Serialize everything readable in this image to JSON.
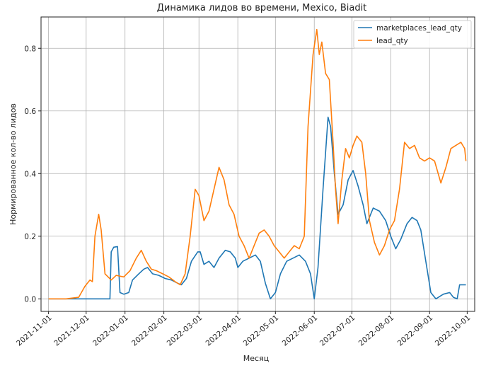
{
  "chart_data": {
    "type": "line",
    "title": "Динамика лидов во времени, Mexico, Biadit",
    "xlabel": "Месяц",
    "ylabel": "Нормированное кол-во лидов",
    "x_ticks": [
      "2021-11-01",
      "2021-12-01",
      "2022-01-01",
      "2022-02-01",
      "2022-03-01",
      "2022-04-01",
      "2022-05-01",
      "2022-06-01",
      "2022-07-01",
      "2022-08-01",
      "2022-09-01",
      "2022-10-01"
    ],
    "y_ticks": [
      "0.0",
      "0.2",
      "0.4",
      "0.6",
      "0.8"
    ],
    "xlim": [
      "2021-10-26",
      "2022-10-07"
    ],
    "ylim": [
      -0.04,
      0.9
    ],
    "grid": true,
    "legend_position": "top-right",
    "series": [
      {
        "name": "marketplaces_lead_qty",
        "color": "#1f77b4",
        "points": [
          [
            "2021-11-01",
            0.0
          ],
          [
            "2021-12-10",
            0.0
          ],
          [
            "2021-12-20",
            0.0
          ],
          [
            "2021-12-21",
            0.15
          ],
          [
            "2021-12-23",
            0.165
          ],
          [
            "2021-12-26",
            0.167
          ],
          [
            "2021-12-28",
            0.02
          ],
          [
            "2021-12-31",
            0.015
          ],
          [
            "2022-01-04",
            0.02
          ],
          [
            "2022-01-07",
            0.06
          ],
          [
            "2022-01-12",
            0.08
          ],
          [
            "2022-01-16",
            0.095
          ],
          [
            "2022-01-19",
            0.1
          ],
          [
            "2022-01-23",
            0.08
          ],
          [
            "2022-01-28",
            0.075
          ],
          [
            "2022-02-02",
            0.065
          ],
          [
            "2022-02-07",
            0.06
          ],
          [
            "2022-02-12",
            0.05
          ],
          [
            "2022-02-15",
            0.045
          ],
          [
            "2022-02-19",
            0.065
          ],
          [
            "2022-02-23",
            0.12
          ],
          [
            "2022-02-28",
            0.15
          ],
          [
            "2022-03-02",
            0.15
          ],
          [
            "2022-03-05",
            0.11
          ],
          [
            "2022-03-09",
            0.12
          ],
          [
            "2022-03-13",
            0.1
          ],
          [
            "2022-03-17",
            0.13
          ],
          [
            "2022-03-22",
            0.155
          ],
          [
            "2022-03-26",
            0.15
          ],
          [
            "2022-03-30",
            0.13
          ],
          [
            "2022-04-01",
            0.1
          ],
          [
            "2022-04-05",
            0.12
          ],
          [
            "2022-04-10",
            0.13
          ],
          [
            "2022-04-15",
            0.14
          ],
          [
            "2022-04-19",
            0.12
          ],
          [
            "2022-04-23",
            0.05
          ],
          [
            "2022-04-27",
            0.0
          ],
          [
            "2022-05-01",
            0.02
          ],
          [
            "2022-05-05",
            0.08
          ],
          [
            "2022-05-10",
            0.12
          ],
          [
            "2022-05-15",
            0.13
          ],
          [
            "2022-05-20",
            0.14
          ],
          [
            "2022-05-25",
            0.12
          ],
          [
            "2022-05-29",
            0.08
          ],
          [
            "2022-06-01",
            0.0
          ],
          [
            "2022-06-04",
            0.1
          ],
          [
            "2022-06-08",
            0.35
          ],
          [
            "2022-06-12",
            0.58
          ],
          [
            "2022-06-14",
            0.55
          ],
          [
            "2022-06-17",
            0.4
          ],
          [
            "2022-06-20",
            0.27
          ],
          [
            "2022-06-24",
            0.3
          ],
          [
            "2022-06-28",
            0.38
          ],
          [
            "2022-07-02",
            0.41
          ],
          [
            "2022-07-06",
            0.36
          ],
          [
            "2022-07-10",
            0.3
          ],
          [
            "2022-07-13",
            0.24
          ],
          [
            "2022-07-18",
            0.29
          ],
          [
            "2022-07-23",
            0.28
          ],
          [
            "2022-07-28",
            0.25
          ],
          [
            "2022-08-01",
            0.2
          ],
          [
            "2022-08-05",
            0.16
          ],
          [
            "2022-08-09",
            0.19
          ],
          [
            "2022-08-14",
            0.24
          ],
          [
            "2022-08-18",
            0.26
          ],
          [
            "2022-08-22",
            0.25
          ],
          [
            "2022-08-25",
            0.22
          ],
          [
            "2022-08-29",
            0.12
          ],
          [
            "2022-09-02",
            0.02
          ],
          [
            "2022-09-06",
            0.0
          ],
          [
            "2022-09-12",
            0.015
          ],
          [
            "2022-09-17",
            0.02
          ],
          [
            "2022-09-20",
            0.005
          ],
          [
            "2022-09-23",
            0.0
          ],
          [
            "2022-09-25",
            0.045
          ],
          [
            "2022-09-30",
            0.045
          ]
        ]
      },
      {
        "name": "lead_qty",
        "color": "#ff7f0e",
        "points": [
          [
            "2021-11-01",
            0.0
          ],
          [
            "2021-11-15",
            0.0
          ],
          [
            "2021-11-25",
            0.005
          ],
          [
            "2021-11-30",
            0.04
          ],
          [
            "2021-12-04",
            0.06
          ],
          [
            "2021-12-06",
            0.055
          ],
          [
            "2021-12-08",
            0.2
          ],
          [
            "2021-12-11",
            0.27
          ],
          [
            "2021-12-13",
            0.22
          ],
          [
            "2021-12-16",
            0.08
          ],
          [
            "2021-12-21",
            0.06
          ],
          [
            "2021-12-25",
            0.075
          ],
          [
            "2021-12-31",
            0.07
          ],
          [
            "2022-01-05",
            0.09
          ],
          [
            "2022-01-10",
            0.13
          ],
          [
            "2022-01-14",
            0.155
          ],
          [
            "2022-01-18",
            0.12
          ],
          [
            "2022-01-22",
            0.095
          ],
          [
            "2022-01-26",
            0.09
          ],
          [
            "2022-01-31",
            0.08
          ],
          [
            "2022-02-05",
            0.07
          ],
          [
            "2022-02-10",
            0.055
          ],
          [
            "2022-02-14",
            0.045
          ],
          [
            "2022-02-18",
            0.08
          ],
          [
            "2022-02-22",
            0.2
          ],
          [
            "2022-02-26",
            0.35
          ],
          [
            "2022-03-01",
            0.33
          ],
          [
            "2022-03-05",
            0.25
          ],
          [
            "2022-03-09",
            0.28
          ],
          [
            "2022-03-13",
            0.35
          ],
          [
            "2022-03-17",
            0.42
          ],
          [
            "2022-03-21",
            0.38
          ],
          [
            "2022-03-25",
            0.3
          ],
          [
            "2022-03-29",
            0.27
          ],
          [
            "2022-04-02",
            0.2
          ],
          [
            "2022-04-06",
            0.17
          ],
          [
            "2022-04-10",
            0.13
          ],
          [
            "2022-04-14",
            0.17
          ],
          [
            "2022-04-18",
            0.21
          ],
          [
            "2022-04-22",
            0.22
          ],
          [
            "2022-04-26",
            0.2
          ],
          [
            "2022-04-30",
            0.17
          ],
          [
            "2022-05-04",
            0.15
          ],
          [
            "2022-05-08",
            0.13
          ],
          [
            "2022-05-12",
            0.15
          ],
          [
            "2022-05-16",
            0.17
          ],
          [
            "2022-05-20",
            0.16
          ],
          [
            "2022-05-24",
            0.2
          ],
          [
            "2022-05-27",
            0.55
          ],
          [
            "2022-05-31",
            0.78
          ],
          [
            "2022-06-03",
            0.86
          ],
          [
            "2022-06-05",
            0.78
          ],
          [
            "2022-06-07",
            0.82
          ],
          [
            "2022-06-10",
            0.72
          ],
          [
            "2022-06-13",
            0.7
          ],
          [
            "2022-06-16",
            0.5
          ],
          [
            "2022-06-18",
            0.35
          ],
          [
            "2022-06-20",
            0.24
          ],
          [
            "2022-06-23",
            0.38
          ],
          [
            "2022-06-26",
            0.48
          ],
          [
            "2022-06-29",
            0.45
          ],
          [
            "2022-07-02",
            0.49
          ],
          [
            "2022-07-05",
            0.52
          ],
          [
            "2022-07-09",
            0.5
          ],
          [
            "2022-07-12",
            0.4
          ],
          [
            "2022-07-15",
            0.25
          ],
          [
            "2022-07-19",
            0.18
          ],
          [
            "2022-07-23",
            0.14
          ],
          [
            "2022-07-27",
            0.17
          ],
          [
            "2022-07-31",
            0.22
          ],
          [
            "2022-08-04",
            0.25
          ],
          [
            "2022-08-08",
            0.35
          ],
          [
            "2022-08-12",
            0.5
          ],
          [
            "2022-08-16",
            0.48
          ],
          [
            "2022-08-20",
            0.49
          ],
          [
            "2022-08-24",
            0.45
          ],
          [
            "2022-08-28",
            0.44
          ],
          [
            "2022-09-01",
            0.45
          ],
          [
            "2022-09-05",
            0.44
          ],
          [
            "2022-09-10",
            0.37
          ],
          [
            "2022-09-14",
            0.42
          ],
          [
            "2022-09-18",
            0.48
          ],
          [
            "2022-09-22",
            0.49
          ],
          [
            "2022-09-26",
            0.5
          ],
          [
            "2022-09-29",
            0.48
          ],
          [
            "2022-09-30",
            0.44
          ]
        ]
      }
    ]
  }
}
